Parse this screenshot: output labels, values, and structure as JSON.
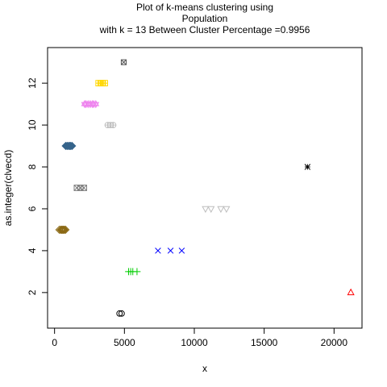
{
  "chart_data": {
    "type": "scatter",
    "title_lines": [
      "Plot of k-means clustering using",
      "Population",
      "with  k = 13 Between Cluster Percentage =0.9956"
    ],
    "xlabel": "x",
    "ylabel": "as.integer(clvecd)",
    "xlim": [
      -500,
      22000
    ],
    "ylim": [
      0.3,
      13.7
    ],
    "xticks": [
      0,
      5000,
      10000,
      15000,
      20000
    ],
    "yticks": [
      2,
      4,
      6,
      8,
      10,
      12
    ],
    "grid": false,
    "series": [
      {
        "cluster": 1,
        "pch": "circle",
        "color": "#000000",
        "points": [
          [
            4650,
            1
          ],
          [
            4800,
            1
          ]
        ]
      },
      {
        "cluster": 2,
        "pch": "triangle",
        "color": "#ff0000",
        "points": [
          [
            21200,
            2
          ]
        ]
      },
      {
        "cluster": 3,
        "pch": "plus",
        "color": "#00cd00",
        "points": [
          [
            5300,
            3
          ],
          [
            5450,
            3
          ],
          [
            5600,
            3
          ],
          [
            5900,
            3
          ]
        ]
      },
      {
        "cluster": 4,
        "pch": "x",
        "color": "#0000ff",
        "points": [
          [
            7400,
            4
          ],
          [
            8300,
            4
          ],
          [
            9100,
            4
          ]
        ]
      },
      {
        "cluster": 5,
        "pch": "diamond",
        "color": "#8b6914",
        "points": [
          [
            350,
            5
          ],
          [
            450,
            5
          ],
          [
            520,
            5
          ],
          [
            580,
            5
          ],
          [
            640,
            5
          ],
          [
            700,
            5
          ],
          [
            780,
            5
          ]
        ]
      },
      {
        "cluster": 6,
        "pch": "triangle-down",
        "color": "#bebebe",
        "points": [
          [
            10800,
            6
          ],
          [
            11200,
            6
          ],
          [
            11900,
            6
          ],
          [
            12300,
            6
          ]
        ]
      },
      {
        "cluster": 7,
        "pch": "boxed-x",
        "color": "#7f7f7f",
        "points": [
          [
            1600,
            7
          ],
          [
            1850,
            7
          ],
          [
            2100,
            7
          ]
        ]
      },
      {
        "cluster": 8,
        "pch": "asterisk",
        "color": "#000000",
        "points": [
          [
            18100,
            8
          ]
        ]
      },
      {
        "cluster": 9,
        "pch": "filled-diamond",
        "color": "#36648b",
        "points": [
          [
            800,
            9
          ],
          [
            900,
            9
          ],
          [
            1000,
            9
          ],
          [
            1080,
            9
          ],
          [
            1150,
            9
          ],
          [
            1250,
            9
          ]
        ]
      },
      {
        "cluster": 10,
        "pch": "circle-plus",
        "color": "#bebebe",
        "points": [
          [
            3800,
            10
          ],
          [
            4000,
            10
          ],
          [
            4200,
            10
          ]
        ]
      },
      {
        "cluster": 11,
        "pch": "star",
        "color": "#ee82ee",
        "points": [
          [
            2150,
            11
          ],
          [
            2250,
            11
          ],
          [
            2400,
            11
          ],
          [
            2550,
            11
          ],
          [
            2700,
            11
          ],
          [
            2800,
            11
          ],
          [
            2950,
            11
          ]
        ]
      },
      {
        "cluster": 12,
        "pch": "boxed-plus",
        "color": "#ffd700",
        "points": [
          [
            3150,
            12
          ],
          [
            3300,
            12
          ],
          [
            3450,
            12
          ],
          [
            3600,
            12
          ]
        ]
      },
      {
        "cluster": 13,
        "pch": "square-x",
        "color": "#555555",
        "points": [
          [
            4950,
            13
          ]
        ]
      }
    ]
  }
}
